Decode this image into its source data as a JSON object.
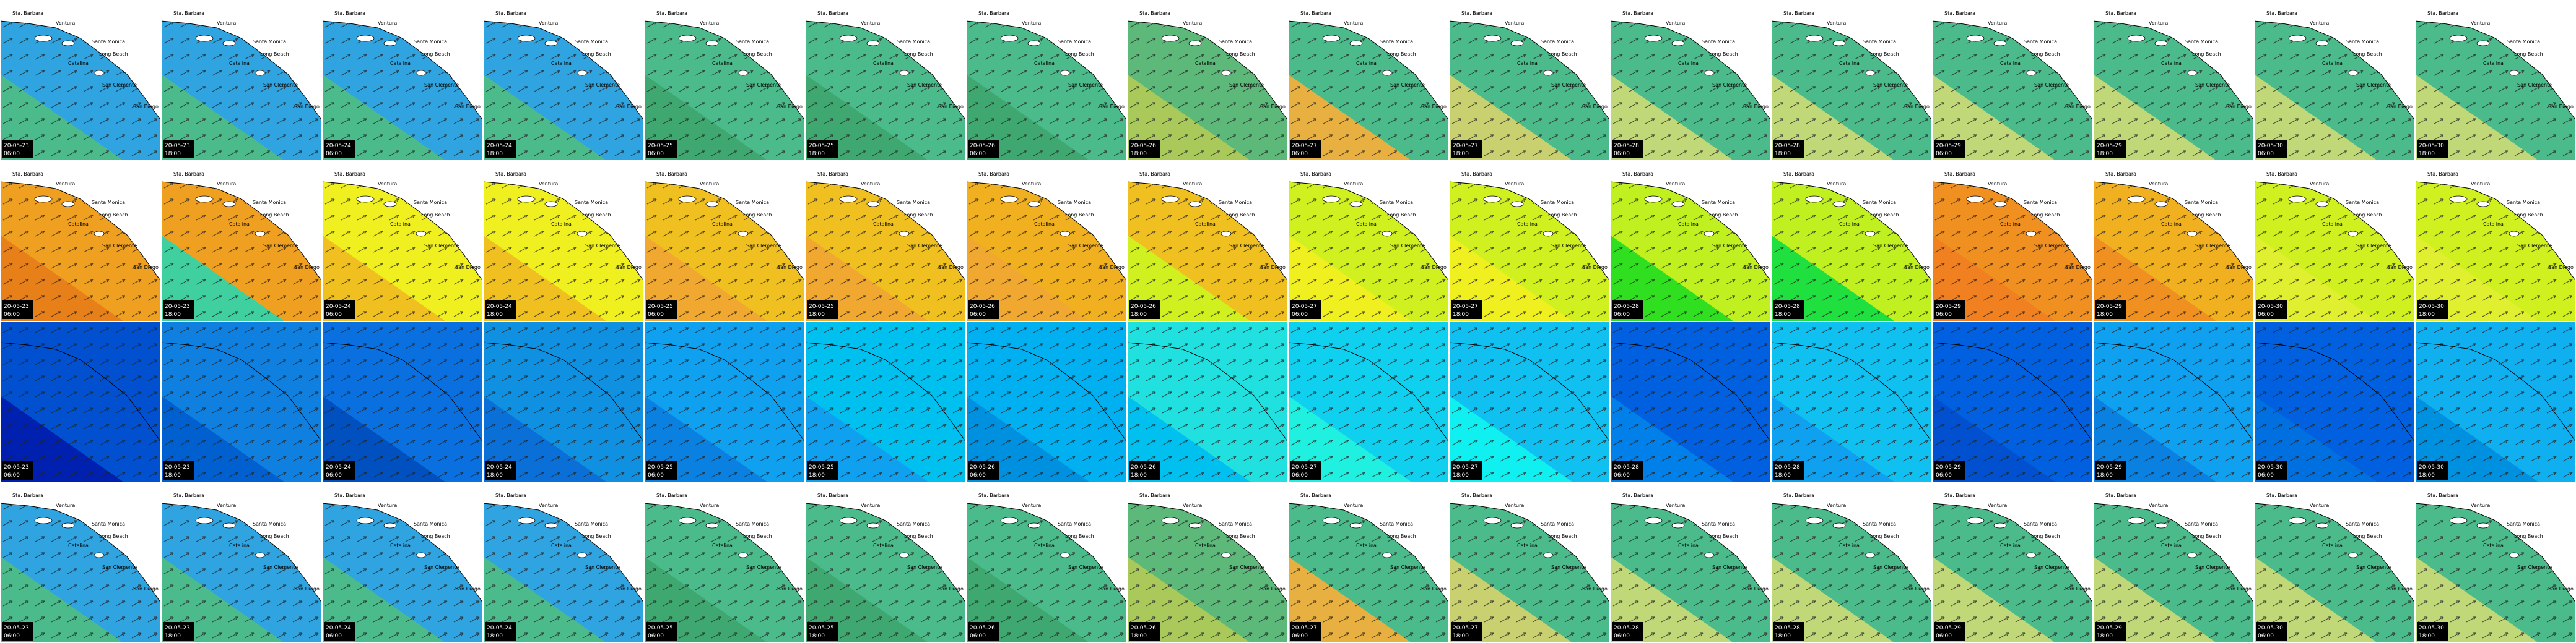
{
  "places": [
    "Sta. Barbara",
    "Ventura",
    "Santa Monica",
    "Long Beach",
    "Catalina",
    "San Clemente",
    "San Diego"
  ],
  "rows": [
    [
      {
        "date": "20-05-23",
        "time": "06:00"
      },
      {
        "date": "20-05-23",
        "time": "18:00"
      },
      {
        "date": "20-05-24",
        "time": "06:00"
      },
      {
        "date": "20-05-24",
        "time": "18:00"
      },
      {
        "date": "20-05-25",
        "time": "06:00"
      },
      {
        "date": "20-05-25",
        "time": "18:00"
      },
      {
        "date": "20-05-26",
        "time": "06:00"
      },
      {
        "date": "20-05-26",
        "time": "18:00"
      },
      {
        "date": "20-05-27",
        "time": "06:00"
      },
      {
        "date": "20-05-27",
        "time": "18:00"
      },
      {
        "date": "20-05-28",
        "time": "06:00"
      },
      {
        "date": "20-05-28",
        "time": "18:00"
      },
      {
        "date": "20-05-29",
        "time": "06:00"
      },
      {
        "date": "20-05-29",
        "time": "18:00"
      },
      {
        "date": "20-05-30",
        "time": "06:00"
      },
      {
        "date": "20-05-30",
        "time": "18:00"
      }
    ],
    [
      {
        "date": "20-05-23",
        "time": "06:00"
      },
      {
        "date": "20-05-23",
        "time": "18:00"
      },
      {
        "date": "20-05-24",
        "time": "06:00"
      },
      {
        "date": "20-05-24",
        "time": "18:00"
      },
      {
        "date": "20-05-25",
        "time": "06:00"
      },
      {
        "date": "20-05-25",
        "time": "18:00"
      },
      {
        "date": "20-05-26",
        "time": "06:00"
      },
      {
        "date": "20-05-26",
        "time": "18:00"
      },
      {
        "date": "20-05-27",
        "time": "06:00"
      },
      {
        "date": "20-05-27",
        "time": "18:00"
      },
      {
        "date": "20-05-28",
        "time": "06:00"
      },
      {
        "date": "20-05-28",
        "time": "18:00"
      },
      {
        "date": "20-05-29",
        "time": "06:00"
      },
      {
        "date": "20-05-29",
        "time": "18:00"
      },
      {
        "date": "20-05-30",
        "time": "06:00"
      },
      {
        "date": "20-05-30",
        "time": "18:00"
      }
    ],
    [
      {
        "date": "20-05-23",
        "time": "06:00"
      },
      {
        "date": "20-05-23",
        "time": "18:00"
      },
      {
        "date": "20-05-24",
        "time": "06:00"
      },
      {
        "date": "20-05-24",
        "time": "18:00"
      },
      {
        "date": "20-05-25",
        "time": "06:00"
      },
      {
        "date": "20-05-25",
        "time": "18:00"
      },
      {
        "date": "20-05-26",
        "time": "06:00"
      },
      {
        "date": "20-05-26",
        "time": "18:00"
      },
      {
        "date": "20-05-27",
        "time": "06:00"
      },
      {
        "date": "20-05-27",
        "time": "18:00"
      },
      {
        "date": "20-05-28",
        "time": "06:00"
      },
      {
        "date": "20-05-28",
        "time": "18:00"
      },
      {
        "date": "20-05-29",
        "time": "06:00"
      },
      {
        "date": "20-05-29",
        "time": "18:00"
      },
      {
        "date": "20-05-30",
        "time": "06:00"
      },
      {
        "date": "20-05-30",
        "time": "18:00"
      }
    ],
    [
      {
        "date": "20-05-23",
        "time": "06:00"
      },
      {
        "date": "20-05-23",
        "time": "18:00"
      },
      {
        "date": "20-05-24",
        "time": "06:00"
      },
      {
        "date": "20-05-24",
        "time": "18:00"
      },
      {
        "date": "20-05-25",
        "time": "06:00"
      },
      {
        "date": "20-05-25",
        "time": "18:00"
      },
      {
        "date": "20-05-26",
        "time": "06:00"
      },
      {
        "date": "20-05-26",
        "time": "18:00"
      },
      {
        "date": "20-05-27",
        "time": "06:00"
      },
      {
        "date": "20-05-27",
        "time": "18:00"
      },
      {
        "date": "20-05-28",
        "time": "06:00"
      },
      {
        "date": "20-05-28",
        "time": "18:00"
      },
      {
        "date": "20-05-29",
        "time": "06:00"
      },
      {
        "date": "20-05-29",
        "time": "18:00"
      },
      {
        "date": "20-05-30",
        "time": "06:00"
      },
      {
        "date": "20-05-30",
        "time": "18:00"
      }
    ]
  ]
}
